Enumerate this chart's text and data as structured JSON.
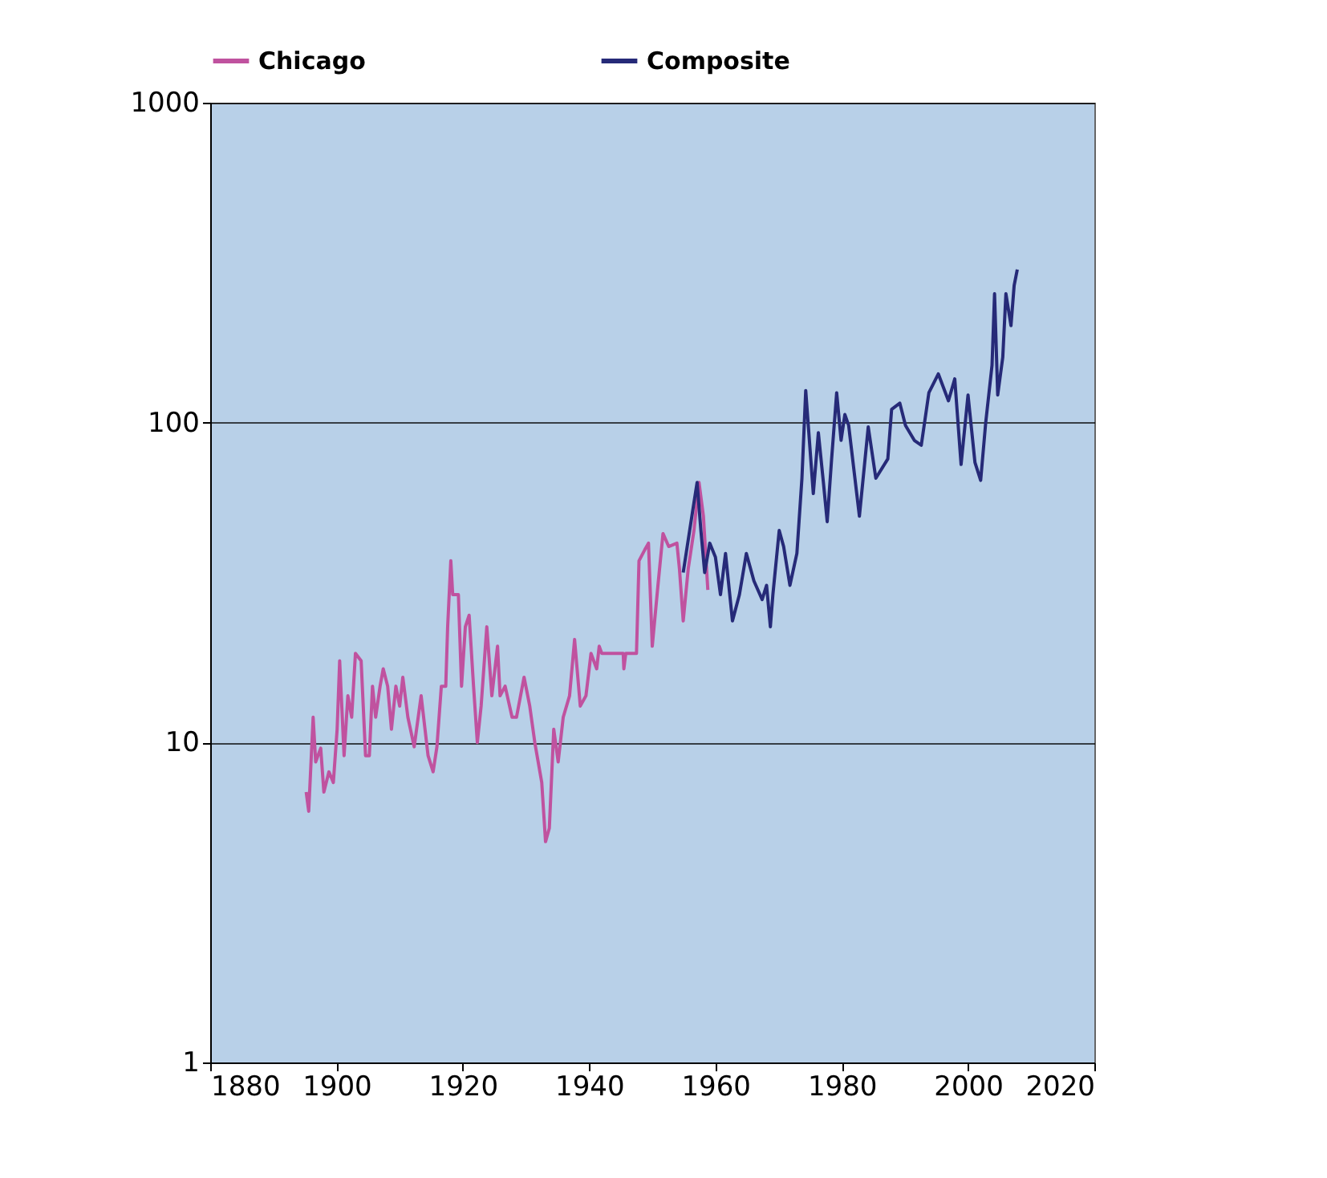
{
  "chart_data": {
    "type": "line",
    "log": "y",
    "grid": "y",
    "legend": "top",
    "line_style": "solid",
    "xlim": [
      1880,
      2020
    ],
    "xticks": [
      1880,
      1900,
      1920,
      1940,
      1960,
      1980,
      2000,
      2020
    ],
    "ylim": [
      1,
      1000
    ],
    "yticks": [
      1,
      10,
      100,
      1000
    ],
    "series": [
      {
        "name": "Chicago",
        "color": "#c0529f",
        "x": [
          1895.2,
          1895.6,
          1896.3,
          1896.7,
          1897.5,
          1898.0,
          1898.8,
          1899.5,
          1900.1,
          1900.5,
          1901.2,
          1901.8,
          1902.4,
          1903.0,
          1903.9,
          1904.6,
          1905.2,
          1905.7,
          1906.2,
          1906.9,
          1907.4,
          1908.1,
          1908.7,
          1909.4,
          1910.0,
          1910.5,
          1911.3,
          1912.3,
          1913.4,
          1914.5,
          1915.3,
          1915.9,
          1916.6,
          1917.3,
          1917.6,
          1918.1,
          1918.4,
          1919.3,
          1919.8,
          1920.4,
          1921.0,
          1921.7,
          1922.3,
          1922.9,
          1923.8,
          1924.6,
          1925.5,
          1925.9,
          1926.7,
          1927.8,
          1928.5,
          1929.7,
          1930.6,
          1931.4,
          1932.5,
          1933.1,
          1933.7,
          1934.4,
          1935.1,
          1935.9,
          1936.9,
          1937.7,
          1938.6,
          1939.5,
          1940.3,
          1941.2,
          1941.6,
          1942.0,
          1945.4,
          1945.5,
          1945.8,
          1947.5,
          1947.9,
          1948.8,
          1949.4,
          1950.0,
          1950.9,
          1951.7,
          1952.6,
          1953.9,
          1954.3,
          1954.9,
          1955.7,
          1956.6,
          1957.4,
          1958.1,
          1958.8
        ],
        "values": [
          7.0,
          6.1,
          12,
          8.7,
          9.6,
          7.0,
          8.1,
          7.5,
          11,
          18,
          9.1,
          14,
          12,
          19,
          18,
          9.1,
          9.1,
          15,
          12,
          15,
          17,
          15,
          11,
          15,
          13,
          16,
          12,
          9.7,
          14,
          9.1,
          8.1,
          9.7,
          15,
          15,
          23,
          37,
          29,
          29,
          15,
          23,
          25,
          15,
          10,
          13,
          23,
          14,
          20,
          14,
          15,
          12,
          12,
          16,
          13,
          10,
          7.5,
          4.9,
          5.4,
          11,
          8.7,
          12,
          14,
          21,
          13,
          14,
          19,
          17,
          20,
          19,
          19,
          17,
          19,
          19,
          37,
          40,
          42,
          20,
          31,
          45,
          41,
          42,
          35,
          24,
          35,
          46,
          65,
          51,
          30
        ]
      },
      {
        "name": "Composite",
        "color": "#262a78",
        "x": [
          1954.9,
          1956.4,
          1957.1,
          1957.7,
          1958.3,
          1959.1,
          1960.0,
          1960.8,
          1961.6,
          1962.7,
          1963.8,
          1964.9,
          1966.1,
          1967.4,
          1968.1,
          1968.7,
          1969.1,
          1970.1,
          1970.8,
          1971.8,
          1972.9,
          1973.7,
          1974.3,
          1975.5,
          1976.3,
          1977.1,
          1977.7,
          1978.4,
          1979.2,
          1979.9,
          1980.5,
          1981.1,
          1982.8,
          1984.2,
          1985.4,
          1987.3,
          1987.9,
          1989.2,
          1990.1,
          1991.5,
          1992.6,
          1993.8,
          1995.3,
          1996.9,
          1997.9,
          1998.9,
          2000.0,
          2001.1,
          2002.0,
          2002.8,
          2003.8,
          2004.2,
          2004.7,
          2005.5,
          2006.0,
          2006.8,
          2007.3,
          2007.8
        ],
        "values": [
          34,
          53,
          65,
          46,
          34,
          42,
          38,
          29,
          39,
          24,
          29,
          39,
          32,
          28,
          31,
          23,
          29,
          46,
          41,
          31,
          39,
          67,
          126,
          60,
          93,
          65,
          49,
          77,
          124,
          88,
          106,
          98,
          51,
          97,
          67,
          77,
          110,
          115,
          98,
          88,
          85,
          124,
          142,
          117,
          137,
          74,
          122,
          75,
          66,
          100,
          151,
          253,
          122,
          160,
          253,
          201,
          268,
          301
        ]
      }
    ]
  }
}
